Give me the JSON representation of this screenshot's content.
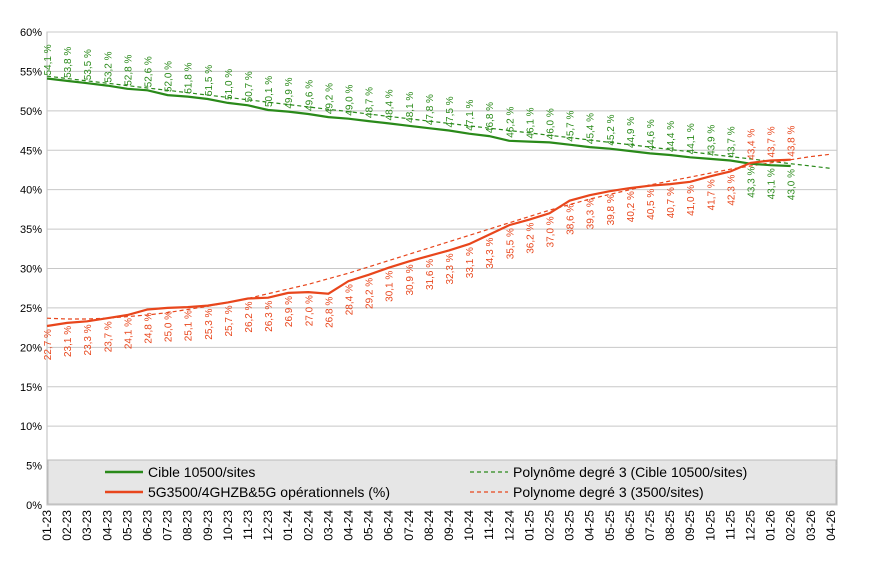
{
  "chart_data": {
    "type": "line",
    "categories": [
      "01-23",
      "02-23",
      "03-23",
      "04-23",
      "05-23",
      "06-23",
      "07-23",
      "08-23",
      "09-23",
      "10-23",
      "11-23",
      "12-23",
      "01-24",
      "02-24",
      "03-24",
      "04-24",
      "05-24",
      "06-24",
      "07-24",
      "08-24",
      "09-24",
      "10-24",
      "11-24",
      "12-24",
      "01-25",
      "02-25",
      "03-25",
      "04-25",
      "05-25",
      "06-25",
      "07-25",
      "08-25",
      "09-25",
      "10-25",
      "11-25",
      "12-25",
      "01-26",
      "02-26",
      "03-26",
      "04-26"
    ],
    "ylim": [
      0,
      60
    ],
    "yticks": [
      {
        "value": 0,
        "label": "0%"
      },
      {
        "value": 5,
        "label": "5%"
      },
      {
        "value": 10,
        "label": "10%"
      },
      {
        "value": 15,
        "label": "15%"
      },
      {
        "value": 20,
        "label": "20%"
      },
      {
        "value": 25,
        "label": "25%"
      },
      {
        "value": 30,
        "label": "30%"
      },
      {
        "value": 35,
        "label": "35%"
      },
      {
        "value": 40,
        "label": "40%"
      },
      {
        "value": 45,
        "label": "45%"
      },
      {
        "value": 50,
        "label": "50%"
      },
      {
        "value": 55,
        "label": "55%"
      },
      {
        "value": 60,
        "label": "60%"
      }
    ],
    "grid": true,
    "series": [
      {
        "name": "Cible 10500/sites",
        "color": "#2a8a1a",
        "style": "solid",
        "values": [
          54.1,
          53.8,
          53.5,
          53.2,
          52.8,
          52.6,
          52.0,
          51.8,
          51.5,
          51.0,
          50.7,
          50.1,
          49.9,
          49.6,
          49.2,
          49.0,
          48.7,
          48.4,
          48.1,
          47.8,
          47.5,
          47.1,
          46.8,
          46.2,
          46.1,
          46.0,
          45.7,
          45.4,
          45.2,
          44.9,
          44.6,
          44.4,
          44.1,
          43.9,
          43.7,
          43.3,
          43.1,
          43.0,
          null,
          null
        ],
        "value_labels": [
          "54,1 %",
          "53,8 %",
          "53,5 %",
          "53,2 %",
          "52,8 %",
          "52,6 %",
          "52,0 %",
          "51,8 %",
          "51,5 %",
          "51,0 %",
          "50,7 %",
          "50,1 %",
          "49,9 %",
          "49,6 %",
          "49,2 %",
          "49,0 %",
          "48,7 %",
          "48,4 %",
          "48,1 %",
          "47,8 %",
          "47,5 %",
          "47,1 %",
          "46,8 %",
          "46,2 %",
          "46,1 %",
          "46,0 %",
          "45,7 %",
          "45,4 %",
          "45,2 %",
          "44,9 %",
          "44,6 %",
          "44,4 %",
          "44,1 %",
          "43,9 %",
          "43,7 %",
          "43,3 %",
          "43,1 %",
          "43,0 %",
          null,
          null
        ]
      },
      {
        "name": "5G3500/4GHZB&5G opérationnels (%)",
        "color": "#e8461c",
        "style": "solid",
        "values": [
          22.7,
          23.1,
          23.3,
          23.7,
          24.1,
          24.8,
          25.0,
          25.1,
          25.3,
          25.7,
          26.2,
          26.3,
          26.9,
          27.0,
          26.8,
          28.4,
          29.2,
          30.1,
          30.9,
          31.6,
          32.3,
          33.1,
          34.3,
          35.5,
          36.2,
          37.0,
          38.6,
          39.3,
          39.8,
          40.2,
          40.5,
          40.7,
          41.0,
          41.7,
          42.3,
          43.4,
          43.7,
          43.8,
          null,
          null
        ],
        "value_labels": [
          "22,7 %",
          "23,1 %",
          "23,3 %",
          "23,7 %",
          "24,1 %",
          "24,8 %",
          "25,0 %",
          "25,1 %",
          "25,3 %",
          "25,7 %",
          "26,2 %",
          "26,3 %",
          "26,9 %",
          "27,0 %",
          "26,8 %",
          "28,4 %",
          "29,2 %",
          "30,1 %",
          "30,9 %",
          "31,6 %",
          "32,3 %",
          "33,1 %",
          "34,3 %",
          "35,5 %",
          "36,2 %",
          "37,0 %",
          "38,6 %",
          "39,3 %",
          "39,8 %",
          "40,2 %",
          "40,5 %",
          "40,7 %",
          "41,0 %",
          "41,7 %",
          "42,3 %",
          "43,4 %",
          "43,7 %",
          "43,8 %",
          null,
          null
        ]
      },
      {
        "name": "Polynôme degré 3 (Cible 10500/sites)",
        "color": "#2a8a1a",
        "style": "dashed",
        "values": [
          54.4,
          54.1,
          53.8,
          53.5,
          53.2,
          52.9,
          52.6,
          52.3,
          52.0,
          51.7,
          51.4,
          51.1,
          50.8,
          50.5,
          50.2,
          49.9,
          49.6,
          49.3,
          49.0,
          48.7,
          48.4,
          48.1,
          47.8,
          47.5,
          47.2,
          46.9,
          46.6,
          46.3,
          46.0,
          45.7,
          45.4,
          45.1,
          44.8,
          44.5,
          44.2,
          43.9,
          43.6,
          43.3,
          43.0,
          42.7
        ]
      },
      {
        "name": "Polynome degré 3 (3500/sites)",
        "color": "#e8461c",
        "style": "dashed",
        "values": [
          23.7,
          23.6,
          23.6,
          23.7,
          23.9,
          24.1,
          24.4,
          24.8,
          25.2,
          25.7,
          26.2,
          26.8,
          27.4,
          28.0,
          28.7,
          29.4,
          30.2,
          31.0,
          31.8,
          32.6,
          33.4,
          34.2,
          35.0,
          35.8,
          36.6,
          37.4,
          38.1,
          38.8,
          39.4,
          40.0,
          40.6,
          41.1,
          41.6,
          42.1,
          42.6,
          43.0,
          43.4,
          43.8,
          44.2,
          44.5
        ]
      }
    ]
  }
}
